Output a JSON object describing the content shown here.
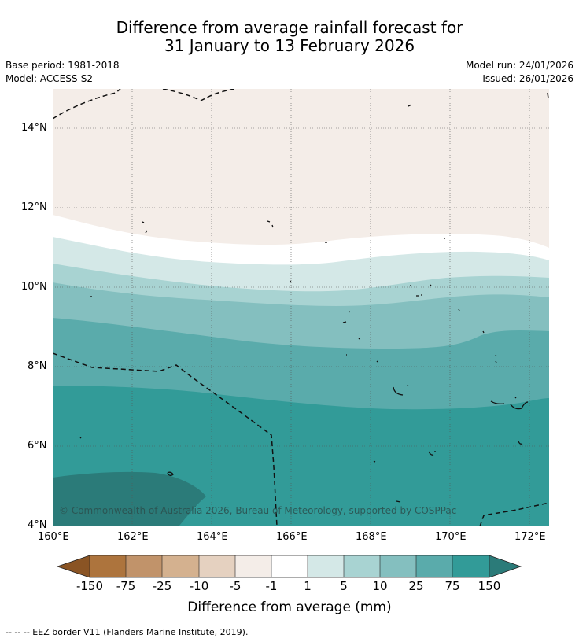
{
  "title": {
    "line1": "Difference from average rainfall forecast for",
    "line2": "31 January to 13 February 2026"
  },
  "meta": {
    "base_period": "Base period: 1981-2018",
    "model": "Model: ACCESS-S2",
    "model_run": "Model run: 24/01/2026",
    "issued": "Issued: 26/01/2026"
  },
  "map": {
    "lat_ticks": [
      "14°N",
      "12°N",
      "10°N",
      "8°N",
      "6°N",
      "4°N"
    ],
    "lon_ticks": [
      "160°E",
      "162°E",
      "164°E",
      "166°E",
      "168°E",
      "170°E",
      "172°E"
    ],
    "copyright": "© Commonwealth of Australia 2026, Bureau of Meteorology, supported by COSPPac",
    "bands": [
      {
        "category": "-5 to -1",
        "color": "#f4ede8"
      },
      {
        "category": "-1 to 1",
        "color": "#ffffff"
      },
      {
        "category": "1 to 5",
        "color": "#d4e8e7"
      },
      {
        "category": "5 to 10",
        "color": "#a8d3d2"
      },
      {
        "category": "10 to 25",
        "color": "#84bfbf"
      },
      {
        "category": "25 to 75",
        "color": "#5aabab"
      },
      {
        "category": "75 to 150",
        "color": "#329b98"
      },
      {
        "category": ">150",
        "color": "#2b7b79"
      }
    ]
  },
  "colorbar": {
    "labels": [
      "-150",
      "-75",
      "-25",
      "-10",
      "-5",
      "-1",
      "1",
      "5",
      "10",
      "25",
      "75",
      "150"
    ],
    "colors": [
      "#8a5424",
      "#ad743d",
      "#c1936a",
      "#d4b18f",
      "#e5d1c0",
      "#f4ede8",
      "#ffffff",
      "#d4e8e7",
      "#a8d3d2",
      "#84bfbf",
      "#5aabab",
      "#329b98",
      "#2b7b79"
    ],
    "title": "Difference from average (mm)"
  },
  "legend": {
    "eez_line": "--  --  -- EEZ border V11 (Flanders Marine Institute, 2019)."
  }
}
